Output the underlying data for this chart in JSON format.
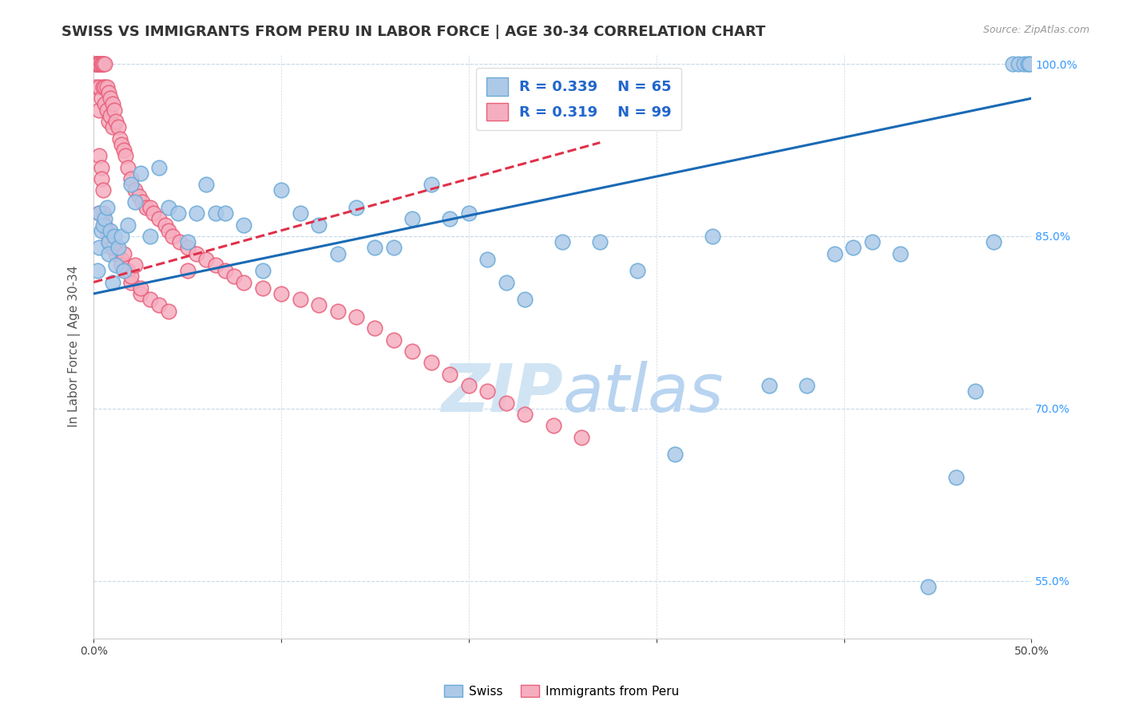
{
  "title": "SWISS VS IMMIGRANTS FROM PERU IN LABOR FORCE | AGE 30-34 CORRELATION CHART",
  "source": "Source: ZipAtlas.com",
  "ylabel": "In Labor Force | Age 30-34",
  "xlim": [
    0.0,
    0.5
  ],
  "ylim": [
    0.5,
    1.008
  ],
  "yticks": [
    0.55,
    0.7,
    0.85,
    1.0
  ],
  "xticks": [
    0.0,
    0.1,
    0.2,
    0.3,
    0.4,
    0.5
  ],
  "legend_r_swiss": "R = 0.339",
  "legend_n_swiss": "N = 65",
  "legend_r_peru": "R = 0.319",
  "legend_n_peru": "N = 99",
  "swiss_color": "#adc9e8",
  "peru_color": "#f5aec0",
  "swiss_edge_color": "#6aaad8",
  "peru_edge_color": "#e8607a",
  "trendline_swiss_color": "#1a6ab5",
  "trendline_peru_color": "#e0304a",
  "background_color": "#ffffff",
  "grid_color": "#c8d8e8",
  "watermark_color": "#d0e4f4",
  "title_fontsize": 13,
  "axis_label_fontsize": 11,
  "tick_fontsize": 10,
  "swiss_x": [
    0.002,
    0.003,
    0.003,
    0.004,
    0.005,
    0.006,
    0.007,
    0.008,
    0.008,
    0.009,
    0.01,
    0.011,
    0.012,
    0.013,
    0.015,
    0.016,
    0.018,
    0.02,
    0.022,
    0.025,
    0.03,
    0.035,
    0.04,
    0.045,
    0.05,
    0.055,
    0.06,
    0.065,
    0.07,
    0.08,
    0.09,
    0.1,
    0.11,
    0.12,
    0.13,
    0.14,
    0.15,
    0.16,
    0.17,
    0.18,
    0.19,
    0.2,
    0.21,
    0.22,
    0.23,
    0.25,
    0.27,
    0.29,
    0.31,
    0.33,
    0.36,
    0.38,
    0.395,
    0.405,
    0.415,
    0.43,
    0.445,
    0.46,
    0.47,
    0.48,
    0.49,
    0.493,
    0.496,
    0.498,
    0.499
  ],
  "swiss_y": [
    0.82,
    0.87,
    0.84,
    0.855,
    0.86,
    0.865,
    0.875,
    0.845,
    0.835,
    0.855,
    0.81,
    0.85,
    0.825,
    0.84,
    0.85,
    0.82,
    0.86,
    0.895,
    0.88,
    0.905,
    0.85,
    0.91,
    0.875,
    0.87,
    0.845,
    0.87,
    0.895,
    0.87,
    0.87,
    0.86,
    0.82,
    0.89,
    0.87,
    0.86,
    0.835,
    0.875,
    0.84,
    0.84,
    0.865,
    0.895,
    0.865,
    0.87,
    0.83,
    0.81,
    0.795,
    0.845,
    0.845,
    0.82,
    0.66,
    0.85,
    0.72,
    0.72,
    0.835,
    0.84,
    0.845,
    0.835,
    0.545,
    0.64,
    0.715,
    0.845,
    1.0,
    1.0,
    1.0,
    1.0,
    1.0
  ],
  "peru_x": [
    0.001,
    0.001,
    0.001,
    0.001,
    0.002,
    0.002,
    0.002,
    0.003,
    0.003,
    0.003,
    0.003,
    0.004,
    0.004,
    0.004,
    0.005,
    0.005,
    0.005,
    0.006,
    0.006,
    0.006,
    0.007,
    0.007,
    0.008,
    0.008,
    0.009,
    0.009,
    0.01,
    0.01,
    0.011,
    0.012,
    0.013,
    0.014,
    0.015,
    0.016,
    0.017,
    0.018,
    0.02,
    0.022,
    0.024,
    0.026,
    0.028,
    0.03,
    0.032,
    0.035,
    0.038,
    0.04,
    0.042,
    0.046,
    0.05,
    0.055,
    0.06,
    0.065,
    0.07,
    0.075,
    0.08,
    0.09,
    0.1,
    0.11,
    0.12,
    0.13,
    0.14,
    0.15,
    0.16,
    0.17,
    0.18,
    0.19,
    0.2,
    0.21,
    0.22,
    0.23,
    0.245,
    0.26,
    0.005,
    0.006,
    0.007,
    0.008,
    0.01,
    0.012,
    0.015,
    0.018,
    0.003,
    0.004,
    0.004,
    0.005,
    0.003,
    0.025,
    0.03,
    0.035,
    0.04,
    0.02,
    0.015,
    0.025,
    0.012,
    0.008,
    0.02,
    0.01,
    0.016,
    0.022,
    0.05
  ],
  "peru_y": [
    1.0,
    1.0,
    1.0,
    0.98,
    1.0,
    1.0,
    1.0,
    1.0,
    1.0,
    0.98,
    0.96,
    1.0,
    1.0,
    0.97,
    1.0,
    1.0,
    0.98,
    1.0,
    0.98,
    0.965,
    0.98,
    0.96,
    0.975,
    0.95,
    0.97,
    0.955,
    0.965,
    0.945,
    0.96,
    0.95,
    0.945,
    0.935,
    0.93,
    0.925,
    0.92,
    0.91,
    0.9,
    0.89,
    0.885,
    0.88,
    0.875,
    0.875,
    0.87,
    0.865,
    0.86,
    0.855,
    0.85,
    0.845,
    0.84,
    0.835,
    0.83,
    0.825,
    0.82,
    0.815,
    0.81,
    0.805,
    0.8,
    0.795,
    0.79,
    0.785,
    0.78,
    0.77,
    0.76,
    0.75,
    0.74,
    0.73,
    0.72,
    0.715,
    0.705,
    0.695,
    0.685,
    0.675,
    0.87,
    0.86,
    0.855,
    0.845,
    0.84,
    0.835,
    0.83,
    0.82,
    0.92,
    0.91,
    0.9,
    0.89,
    0.87,
    0.8,
    0.795,
    0.79,
    0.785,
    0.81,
    0.825,
    0.805,
    0.84,
    0.845,
    0.815,
    0.84,
    0.835,
    0.825,
    0.82
  ]
}
